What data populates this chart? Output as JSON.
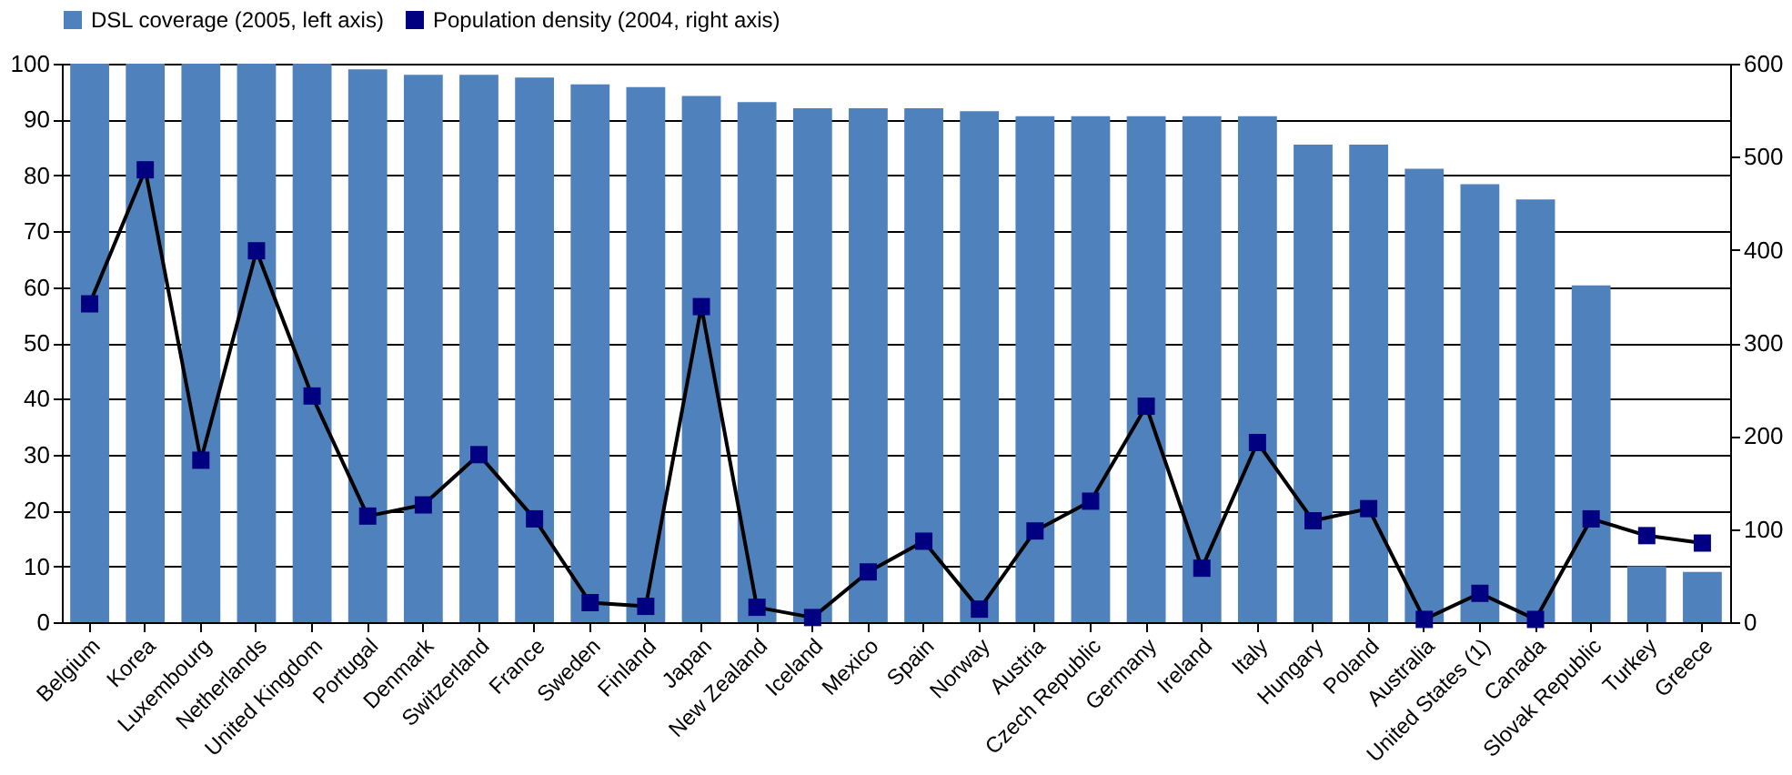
{
  "chart_data": {
    "type": "bar",
    "categories": [
      "Belgium",
      "Korea",
      "Luxembourg",
      "Netherlands",
      "United Kingdom",
      "Portugal",
      "Denmark",
      "Switzerland",
      "France",
      "Sweden",
      "Finland",
      "Japan",
      "New Zealand",
      "Iceland",
      "Mexico",
      "Spain",
      "Norway",
      "Austria",
      "Czech Republic",
      "Germany",
      "Ireland",
      "Italy",
      "Hungary",
      "Poland",
      "Australia",
      "United States (1)",
      "Canada",
      "Slovak Republic",
      "Turkey",
      "Greece"
    ],
    "series": [
      {
        "name": "DSL coverage (2005, left axis)",
        "color": "#4f81bd",
        "values": [
          100,
          100,
          100,
          100,
          100,
          99,
          98,
          98,
          97.5,
          96.3,
          95.8,
          94.2,
          93.1,
          92,
          92,
          92,
          91.5,
          90.6,
          90.6,
          90.6,
          90.6,
          90.6,
          85.5,
          85.5,
          81.2,
          78.4,
          75.7,
          60.3,
          10,
          9
        ]
      },
      {
        "name": "Population density (2004, right axis)",
        "type": "line",
        "axis": "y2",
        "marker": "square",
        "color": "#000080",
        "values": [
          342,
          486,
          174,
          399,
          243,
          114,
          126,
          180,
          111,
          21,
          17,
          339,
          16,
          5,
          54,
          87,
          14,
          98,
          130,
          232,
          58,
          193,
          109,
          122,
          3,
          31,
          3,
          111,
          93,
          85
        ]
      }
    ],
    "ylim": [
      0,
      100
    ],
    "yticks": [
      0,
      10,
      20,
      30,
      40,
      50,
      60,
      70,
      80,
      90,
      100
    ],
    "y2lim": [
      0,
      600
    ],
    "y2ticks": [
      0,
      100,
      200,
      300,
      400,
      500,
      600
    ],
    "grid": "y",
    "legend": "top"
  }
}
